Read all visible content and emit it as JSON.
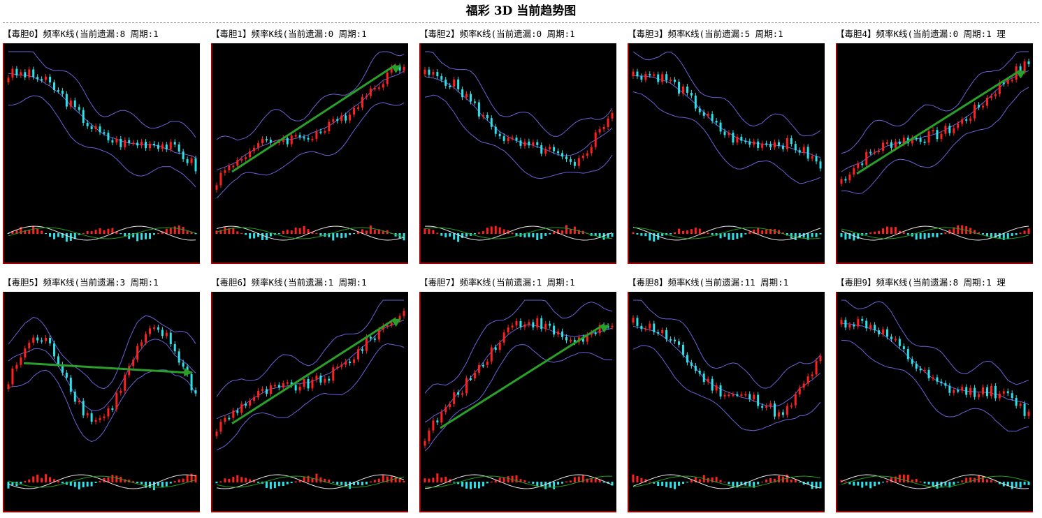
{
  "title": "福彩 3D 当前趋势图",
  "colors": {
    "background": "#000000",
    "axis": "#d00000",
    "up_candle": "#ff2020",
    "down_candle": "#30e0e8",
    "band_line": "#6a62d8",
    "arrow": "#2aa02a",
    "indicator_fast": "#e8e8e8",
    "indicator_slow": "#20a020"
  },
  "panels": [
    {
      "label": "【毒胆0】频率K线(当前遗漏:8 周期:1",
      "trend": "down",
      "arrow": false
    },
    {
      "label": "【毒胆1】频率K线(当前遗漏:0 周期:1",
      "trend": "up",
      "arrow": true
    },
    {
      "label": "【毒胆2】频率K线(当前遗漏:0 周期:1",
      "trend": "down-v",
      "arrow": false
    },
    {
      "label": "【毒胆3】频率K线(当前遗漏:5 周期:1",
      "trend": "down",
      "arrow": false
    },
    {
      "label": "【毒胆4】频率K线(当前遗漏:0 周期:1 理",
      "trend": "up",
      "arrow": true
    },
    {
      "label": "【毒胆5】频率K线(当前遗漏:3 周期:1",
      "trend": "wave",
      "arrow": true
    },
    {
      "label": "【毒胆6】频率K线(当前遗漏:1 周期:1",
      "trend": "up",
      "arrow": true
    },
    {
      "label": "【毒胆7】频率K线(当前遗漏:1 周期:1",
      "trend": "up-plateau",
      "arrow": true
    },
    {
      "label": "【毒胆8】频率K线(当前遗漏:11 周期:1",
      "trend": "down-v",
      "arrow": false
    },
    {
      "label": "【毒胆9】频率K线(当前遗漏:8 周期:1 理",
      "trend": "down",
      "arrow": false
    }
  ]
}
